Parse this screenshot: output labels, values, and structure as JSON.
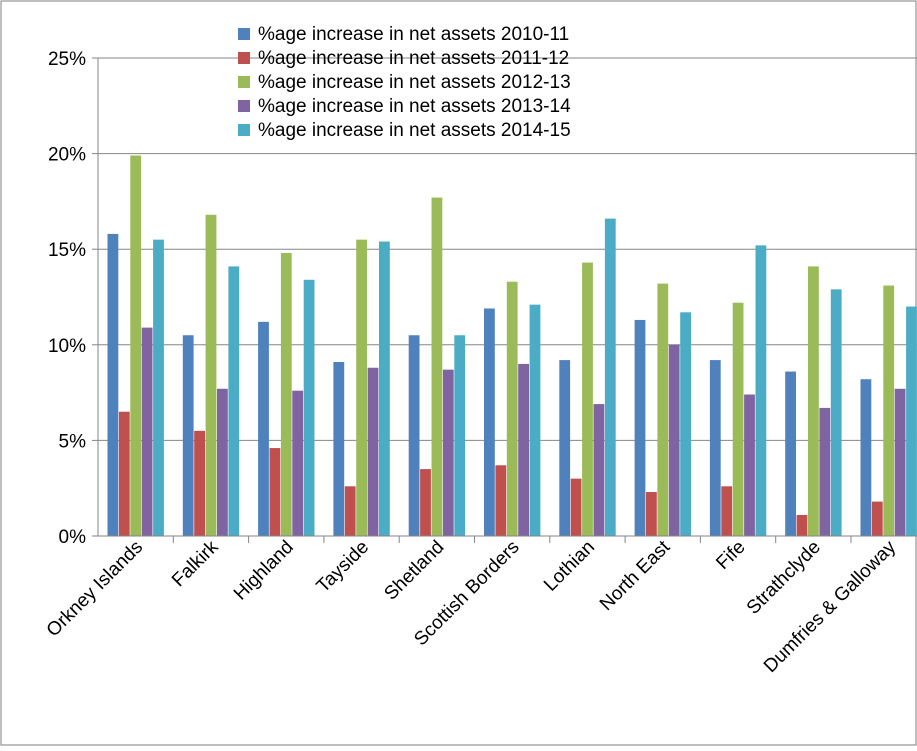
{
  "chart_data": {
    "type": "bar",
    "title": "",
    "xlabel": "",
    "ylabel": "",
    "ylim": [
      0,
      0.25
    ],
    "yticks": [
      "0%",
      "5%",
      "10%",
      "15%",
      "20%",
      "25%"
    ],
    "grid": true,
    "legend_position": "top",
    "categories": [
      "Orkney Islands",
      "Falkirk",
      "Highland",
      "Tayside",
      "Shetland",
      "Scottish Borders",
      "Lothian",
      "North East",
      "Fife",
      "Strathclyde",
      "Dumfries & Galloway"
    ],
    "series": [
      {
        "name": "%age increase in net assets 2010-11",
        "color": "#4F81BD",
        "values": [
          0.158,
          0.105,
          0.112,
          0.091,
          0.105,
          0.119,
          0.092,
          0.113,
          0.092,
          0.086,
          0.082
        ]
      },
      {
        "name": "%age increase in net assets 2011-12",
        "color": "#C0504D",
        "values": [
          0.065,
          0.055,
          0.046,
          0.026,
          0.035,
          0.037,
          0.03,
          0.023,
          0.026,
          0.011,
          0.018
        ]
      },
      {
        "name": "%age increase in net assets 2012-13",
        "color": "#9BBB59",
        "values": [
          0.199,
          0.168,
          0.148,
          0.155,
          0.177,
          0.133,
          0.143,
          0.132,
          0.122,
          0.141,
          0.131
        ]
      },
      {
        "name": "%age increase in net assets 2013-14",
        "color": "#8064A2",
        "values": [
          0.109,
          0.077,
          0.076,
          0.088,
          0.087,
          0.09,
          0.069,
          0.1,
          0.074,
          0.067,
          0.077
        ]
      },
      {
        "name": "%age increase in net assets 2014-15",
        "color": "#4BACC6",
        "values": [
          0.155,
          0.141,
          0.134,
          0.154,
          0.105,
          0.121,
          0.166,
          0.117,
          0.152,
          0.129,
          0.12
        ]
      }
    ]
  }
}
